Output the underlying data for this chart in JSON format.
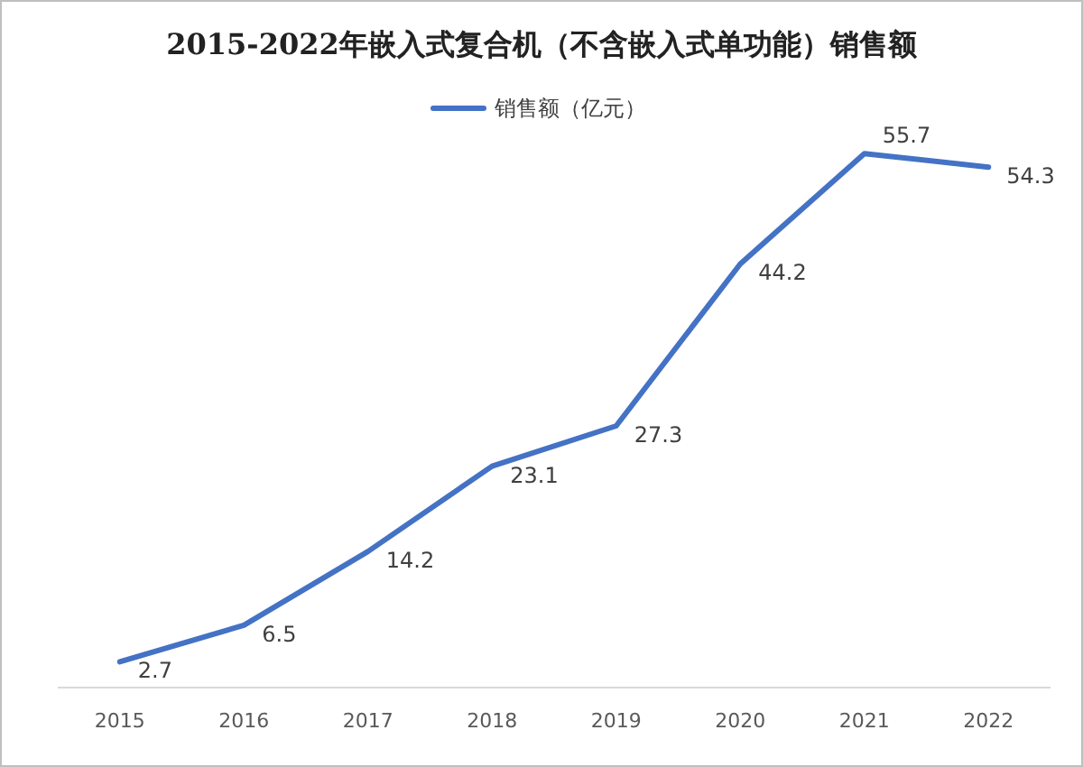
{
  "chart_data": {
    "type": "line",
    "title": "2015-2022年嵌入式复合机（不含嵌入式单功能）销售额",
    "categories": [
      "2015",
      "2016",
      "2017",
      "2018",
      "2019",
      "2020",
      "2021",
      "2022"
    ],
    "series": [
      {
        "name": "销售额（亿元）",
        "color": "#4472c4",
        "values": [
          2.7,
          6.5,
          14.2,
          23.1,
          27.3,
          44.2,
          55.7,
          54.3
        ]
      }
    ],
    "data_labels": true,
    "legend": "top",
    "marker": "none",
    "line_style": "solid"
  }
}
